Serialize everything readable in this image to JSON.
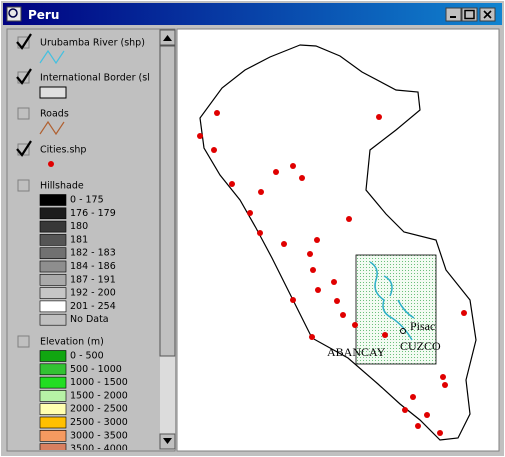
{
  "window": {
    "title": "Peru"
  },
  "legend": {
    "layers": [
      {
        "name": "Urubamba River (shp)",
        "checked": true
      },
      {
        "name": "International Border (sl",
        "checked": true
      },
      {
        "name": "Roads",
        "checked": false
      },
      {
        "name": "Cities.shp",
        "checked": true
      },
      {
        "name": "Hillshade",
        "checked": false,
        "classes": [
          {
            "label": "0 - 175",
            "color": "#000000"
          },
          {
            "label": "176 - 179",
            "color": "#1c1c1c"
          },
          {
            "label": "180",
            "color": "#383838"
          },
          {
            "label": "181",
            "color": "#555555"
          },
          {
            "label": "182 - 183",
            "color": "#717171"
          },
          {
            "label": "184 - 186",
            "color": "#8e8e8e"
          },
          {
            "label": "187 - 191",
            "color": "#aaaaaa"
          },
          {
            "label": "192 - 200",
            "color": "#c6c6c6"
          },
          {
            "label": "201 - 254",
            "color": "#ffffff"
          },
          {
            "label": "No Data",
            "color": "#c0c0c0"
          }
        ]
      },
      {
        "name": "Elevation (m)",
        "checked": false,
        "classes": [
          {
            "label": "0 - 500",
            "color": "#11a611"
          },
          {
            "label": "500 - 1000",
            "color": "#33c233"
          },
          {
            "label": "1000 - 1500",
            "color": "#22dd22"
          },
          {
            "label": "1500 - 2000",
            "color": "#b7f2a6"
          },
          {
            "label": "2000 - 2500",
            "color": "#ffffb0"
          },
          {
            "label": "2500 - 3000",
            "color": "#ffc000"
          },
          {
            "label": "3000 - 3500",
            "color": "#f59a60"
          },
          {
            "label": "3500 - 4000",
            "color": "#d88060"
          }
        ]
      }
    ]
  },
  "map": {
    "labels": [
      "ABANCAY",
      "CUZCO",
      "Pisac"
    ]
  }
}
